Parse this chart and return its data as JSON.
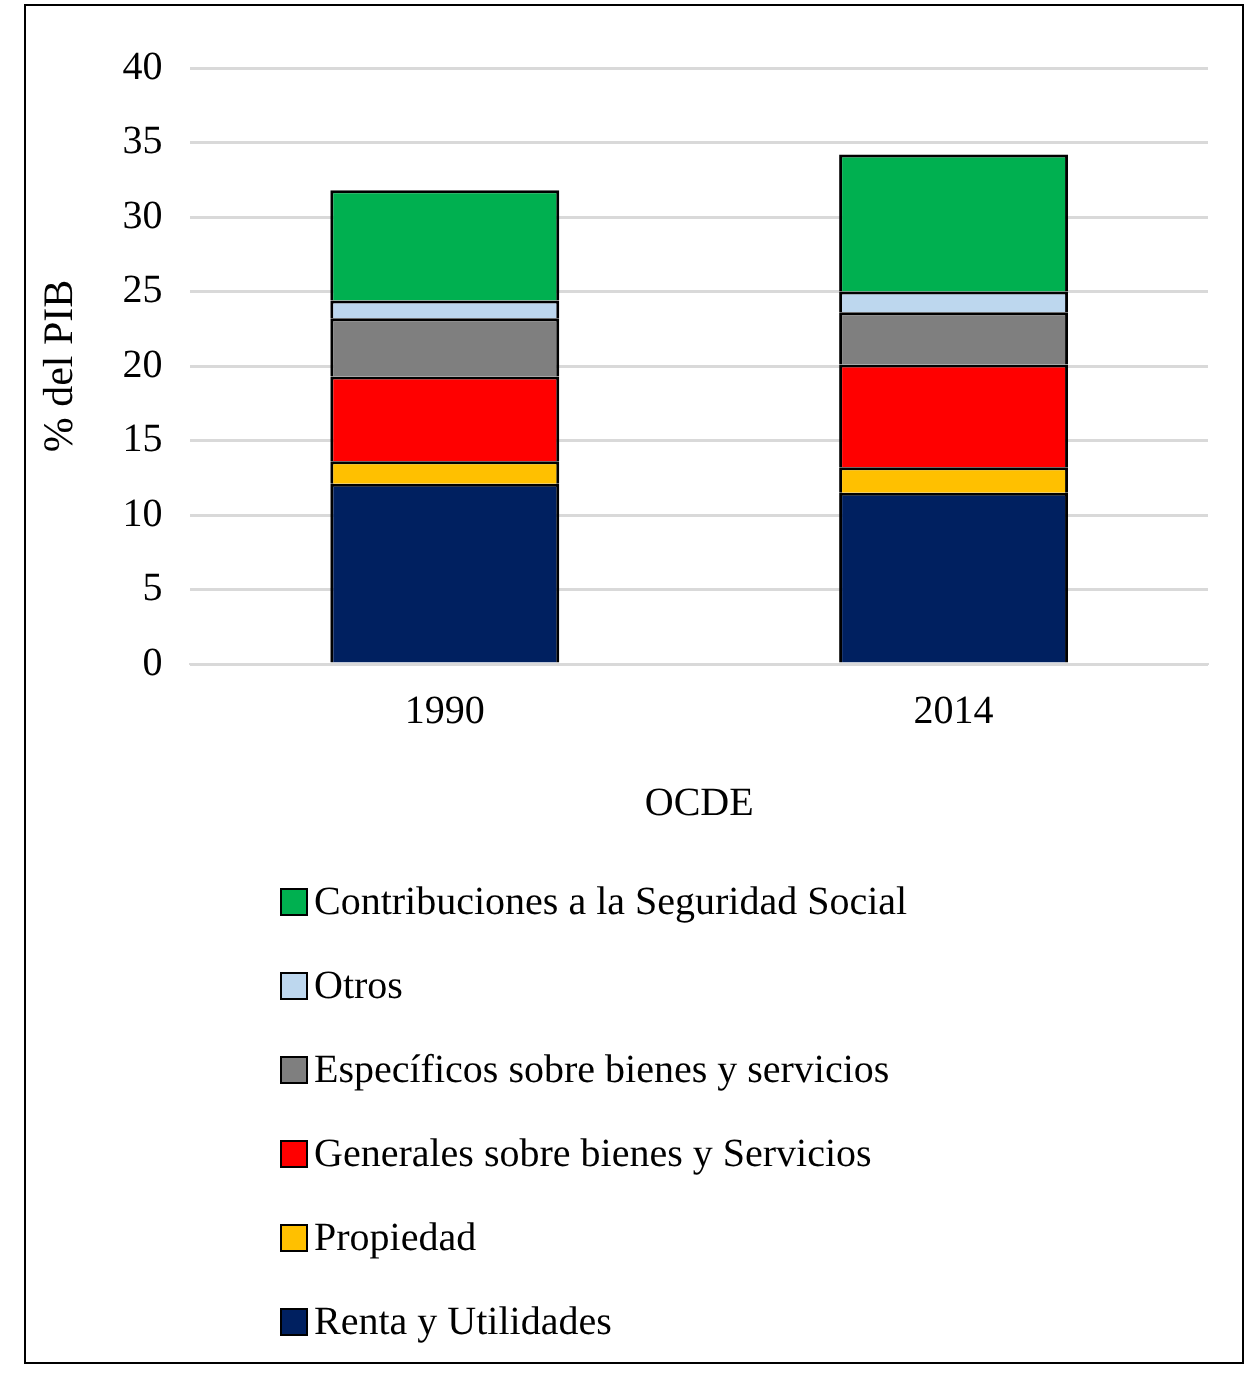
{
  "chart_data": {
    "type": "bar",
    "stacked": true,
    "xlabel": "OCDE",
    "ylabel": "% del PIB",
    "categories": [
      "1990",
      "2014"
    ],
    "series": [
      {
        "name": "Renta y Utilidades",
        "color": "#002060",
        "values": [
          12.1,
          11.5
        ]
      },
      {
        "name": "Propiedad",
        "color": "#ffc000",
        "values": [
          1.5,
          1.7
        ]
      },
      {
        "name": "Generales sobre bienes y Servicios",
        "color": "#ff0000",
        "values": [
          5.7,
          6.9
        ]
      },
      {
        "name": "Específicos sobre bienes y servicios",
        "color": "#7f7f7f",
        "values": [
          3.9,
          3.5
        ]
      },
      {
        "name": "Otros",
        "color": "#bdd7ee",
        "values": [
          1.2,
          1.4
        ]
      },
      {
        "name": "Contribuciones a la Seguridad Social",
        "color": "#00b050",
        "values": [
          7.4,
          9.2
        ]
      }
    ],
    "ylim": [
      0,
      40
    ],
    "yticks": [
      0,
      5,
      10,
      15,
      20,
      25,
      30,
      35,
      40
    ],
    "grid": "y",
    "legend": "bottom"
  }
}
